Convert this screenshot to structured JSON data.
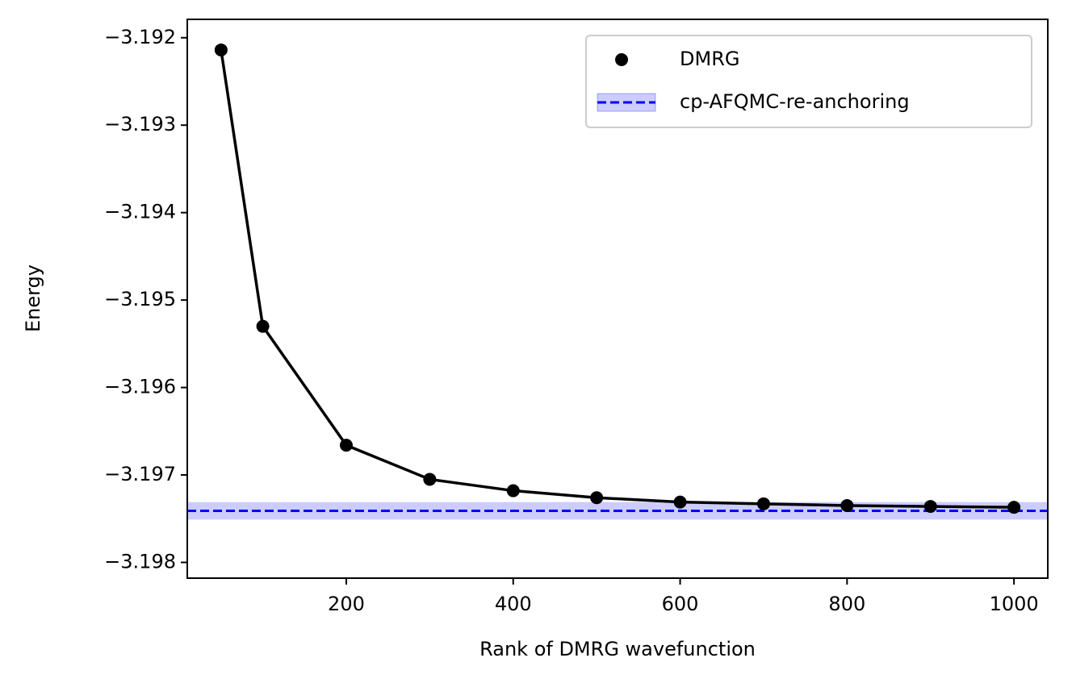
{
  "chart_data": {
    "type": "line",
    "x_label": "Rank of DMRG wavefunction",
    "y_label": "Energy",
    "x": [
      50,
      100,
      200,
      300,
      400,
      500,
      600,
      700,
      800,
      900,
      1000
    ],
    "series": [
      {
        "name": "DMRG",
        "color": "#000000",
        "markers": true,
        "values": [
          -3.19214,
          -3.1953,
          -3.19666,
          -3.19705,
          -3.19718,
          -3.19726,
          -3.19731,
          -3.19733,
          -3.19735,
          -3.19736,
          -3.19737
        ]
      }
    ],
    "reference": {
      "name": "cp-AFQMC-re-anchoring",
      "value": -3.19741,
      "error": 0.0001,
      "color": "#0000ff"
    },
    "xlim": [
      9.5,
      1040.5
    ],
    "ylim": [
      -3.19818,
      -3.19179
    ],
    "xticks": [
      200,
      400,
      600,
      800,
      1000
    ],
    "yticks": [
      {
        "value": -3.198,
        "label": "−3.198"
      },
      {
        "value": -3.197,
        "label": "−3.197"
      },
      {
        "value": -3.196,
        "label": "−3.196"
      },
      {
        "value": -3.195,
        "label": "−3.195"
      },
      {
        "value": -3.194,
        "label": "−3.194"
      },
      {
        "value": -3.193,
        "label": "−3.193"
      },
      {
        "value": -3.192,
        "label": "−3.192"
      }
    ],
    "legend": "upper right",
    "grid": false
  }
}
